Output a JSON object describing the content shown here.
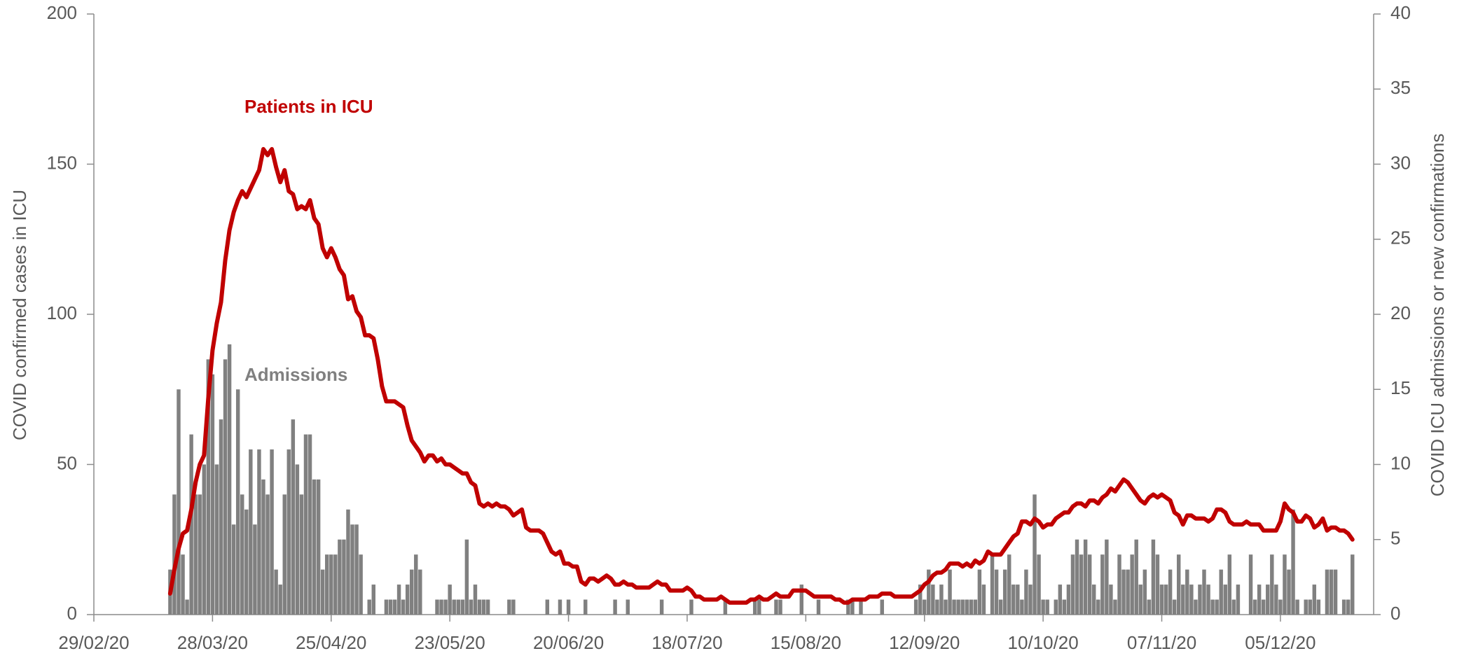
{
  "chart_data": {
    "type": "combo",
    "y_label": "COVID confirmed cases in ICU",
    "y2_label": "COVID ICU admissions or new confirmations",
    "xlim": [
      "29/02/20",
      "27/12/20"
    ],
    "xticks": [
      "29/02/20",
      "28/03/20",
      "25/04/20",
      "23/05/20",
      "20/06/20",
      "18/07/20",
      "15/08/20",
      "12/09/20",
      "10/10/20",
      "07/11/20",
      "05/12/20"
    ],
    "ylim": [
      0,
      200
    ],
    "yticks": [
      0,
      50,
      100,
      150,
      200
    ],
    "y2lim": [
      0,
      40
    ],
    "y2ticks": [
      0,
      5,
      10,
      15,
      20,
      25,
      30,
      35,
      40
    ],
    "grid": false,
    "x": [
      "18/03/20",
      "19/03/20",
      "20/03/20",
      "21/03/20",
      "22/03/20",
      "23/03/20",
      "24/03/20",
      "25/03/20",
      "26/03/20",
      "27/03/20",
      "28/03/20",
      "29/03/20",
      "30/03/20",
      "31/03/20",
      "01/04/20",
      "02/04/20",
      "03/04/20",
      "04/04/20",
      "05/04/20",
      "06/04/20",
      "07/04/20",
      "08/04/20",
      "09/04/20",
      "10/04/20",
      "11/04/20",
      "12/04/20",
      "13/04/20",
      "14/04/20",
      "15/04/20",
      "16/04/20",
      "17/04/20",
      "18/04/20",
      "19/04/20",
      "20/04/20",
      "21/04/20",
      "22/04/20",
      "23/04/20",
      "24/04/20",
      "25/04/20",
      "26/04/20",
      "27/04/20",
      "28/04/20",
      "29/04/20",
      "30/04/20",
      "01/05/20",
      "02/05/20",
      "03/05/20",
      "04/05/20",
      "05/05/20",
      "06/05/20",
      "07/05/20",
      "08/05/20",
      "09/05/20",
      "10/05/20",
      "11/05/20",
      "12/05/20",
      "13/05/20",
      "14/05/20",
      "15/05/20",
      "16/05/20",
      "17/05/20",
      "18/05/20",
      "19/05/20",
      "20/05/20",
      "21/05/20",
      "22/05/20",
      "23/05/20",
      "24/05/20",
      "25/05/20",
      "26/05/20",
      "27/05/20",
      "28/05/20",
      "29/05/20",
      "30/05/20",
      "31/05/20",
      "01/06/20",
      "02/06/20",
      "03/06/20",
      "04/06/20",
      "05/06/20",
      "06/06/20",
      "07/06/20",
      "08/06/20",
      "09/06/20",
      "10/06/20",
      "11/06/20",
      "12/06/20",
      "13/06/20",
      "14/06/20",
      "15/06/20",
      "16/06/20",
      "17/06/20",
      "18/06/20",
      "19/06/20",
      "20/06/20",
      "21/06/20",
      "22/06/20",
      "23/06/20",
      "24/06/20",
      "25/06/20",
      "26/06/20",
      "27/06/20",
      "28/06/20",
      "29/06/20",
      "30/06/20",
      "01/07/20",
      "02/07/20",
      "03/07/20",
      "04/07/20",
      "05/07/20",
      "06/07/20",
      "07/07/20",
      "08/07/20",
      "09/07/20",
      "10/07/20",
      "11/07/20",
      "12/07/20",
      "13/07/20",
      "14/07/20",
      "15/07/20",
      "16/07/20",
      "17/07/20",
      "18/07/20",
      "19/07/20",
      "20/07/20",
      "21/07/20",
      "22/07/20",
      "23/07/20",
      "24/07/20",
      "25/07/20",
      "26/07/20",
      "27/07/20",
      "28/07/20",
      "29/07/20",
      "30/07/20",
      "31/07/20",
      "01/08/20",
      "02/08/20",
      "03/08/20",
      "04/08/20",
      "05/08/20",
      "06/08/20",
      "07/08/20",
      "08/08/20",
      "09/08/20",
      "10/08/20",
      "11/08/20",
      "12/08/20",
      "13/08/20",
      "14/08/20",
      "15/08/20",
      "16/08/20",
      "17/08/20",
      "18/08/20",
      "19/08/20",
      "20/08/20",
      "21/08/20",
      "22/08/20",
      "23/08/20",
      "24/08/20",
      "25/08/20",
      "26/08/20",
      "27/08/20",
      "28/08/20",
      "29/08/20",
      "30/08/20",
      "31/08/20",
      "01/09/20",
      "02/09/20",
      "03/09/20",
      "04/09/20",
      "05/09/20",
      "06/09/20",
      "07/09/20",
      "08/09/20",
      "09/09/20",
      "10/09/20",
      "11/09/20",
      "12/09/20",
      "13/09/20",
      "14/09/20",
      "15/09/20",
      "16/09/20",
      "17/09/20",
      "18/09/20",
      "19/09/20",
      "20/09/20",
      "21/09/20",
      "22/09/20",
      "23/09/20",
      "24/09/20",
      "25/09/20",
      "26/09/20",
      "27/09/20",
      "28/09/20",
      "29/09/20",
      "30/09/20",
      "01/10/20",
      "02/10/20",
      "03/10/20",
      "04/10/20",
      "05/10/20",
      "06/10/20",
      "07/10/20",
      "08/10/20",
      "09/10/20",
      "10/10/20",
      "11/10/20",
      "12/10/20",
      "13/10/20",
      "14/10/20",
      "15/10/20",
      "16/10/20",
      "17/10/20",
      "18/10/20",
      "19/10/20",
      "20/10/20",
      "21/10/20",
      "22/10/20",
      "23/10/20",
      "24/10/20",
      "25/10/20",
      "26/10/20",
      "27/10/20",
      "28/10/20",
      "29/10/20",
      "30/10/20",
      "31/10/20",
      "01/11/20",
      "02/11/20",
      "03/11/20",
      "04/11/20",
      "05/11/20",
      "06/11/20",
      "07/11/20",
      "08/11/20",
      "09/11/20",
      "10/11/20",
      "11/11/20",
      "12/11/20",
      "13/11/20",
      "14/11/20",
      "15/11/20",
      "16/11/20",
      "17/11/20",
      "18/11/20",
      "19/11/20",
      "20/11/20",
      "21/11/20",
      "22/11/20",
      "23/11/20",
      "24/11/20",
      "25/11/20",
      "26/11/20",
      "27/11/20",
      "28/11/20",
      "29/11/20",
      "30/11/20",
      "01/12/20",
      "02/12/20",
      "03/12/20",
      "04/12/20",
      "05/12/20",
      "06/12/20",
      "07/12/20",
      "08/12/20",
      "09/12/20",
      "10/12/20",
      "11/12/20",
      "12/12/20",
      "13/12/20",
      "14/12/20",
      "15/12/20",
      "16/12/20",
      "17/12/20",
      "18/12/20",
      "19/12/20",
      "20/12/20",
      "21/12/20",
      "22/12/20"
    ],
    "series": [
      {
        "name": "Admissions",
        "type": "bar",
        "axis": "y2",
        "color": "#808080",
        "values": [
          3,
          8,
          15,
          4,
          1,
          12,
          8,
          8,
          10,
          17,
          16,
          10,
          13,
          17,
          18,
          6,
          15,
          8,
          7,
          11,
          6,
          11,
          9,
          8,
          11,
          3,
          2,
          8,
          11,
          13,
          10,
          8,
          12,
          12,
          9,
          9,
          3,
          4,
          4,
          4,
          5,
          5,
          7,
          6,
          6,
          4,
          0,
          1,
          2,
          0,
          0,
          1,
          1,
          1,
          2,
          1,
          2,
          3,
          4,
          3,
          0,
          0,
          0,
          1,
          1,
          1,
          2,
          1,
          1,
          1,
          5,
          1,
          2,
          1,
          1,
          1,
          0,
          0,
          0,
          0,
          1,
          1,
          0,
          0,
          0,
          0,
          0,
          0,
          0,
          1,
          0,
          0,
          1,
          0,
          1,
          0,
          0,
          0,
          1,
          0,
          0,
          0,
          0,
          0,
          0,
          1,
          0,
          0,
          1,
          0,
          0,
          0,
          0,
          0,
          0,
          0,
          1,
          0,
          0,
          0,
          0,
          0,
          0,
          1,
          0,
          0,
          0,
          0,
          0,
          0,
          0,
          1,
          0,
          0,
          0,
          0,
          0,
          0,
          1,
          1,
          0,
          0,
          0,
          1,
          1,
          0,
          0,
          0,
          0,
          2,
          0,
          0,
          0,
          1,
          0,
          0,
          0,
          0,
          0,
          0,
          1,
          1,
          0,
          1,
          0,
          0,
          0,
          0,
          1,
          0,
          0,
          0,
          0,
          0,
          0,
          0,
          1,
          2,
          1,
          3,
          2,
          1,
          2,
          1,
          3,
          1,
          1,
          1,
          1,
          1,
          1,
          3,
          2,
          0,
          4,
          3,
          1,
          3,
          4,
          2,
          2,
          1,
          3,
          2,
          8,
          4,
          1,
          1,
          0,
          1,
          2,
          1,
          2,
          4,
          5,
          4,
          5,
          4,
          2,
          1,
          4,
          5,
          2,
          1,
          4,
          3,
          3,
          4,
          5,
          2,
          3,
          1,
          5,
          4,
          2,
          2,
          3,
          1,
          4,
          2,
          3,
          2,
          1,
          2,
          3,
          2,
          1,
          1,
          3,
          2,
          4,
          1,
          2,
          0,
          0,
          4,
          1,
          2,
          1,
          2,
          4,
          2,
          1,
          4,
          3,
          7,
          1,
          0,
          1,
          1,
          2,
          1,
          0,
          3,
          3,
          3,
          0,
          1,
          1,
          4
        ]
      },
      {
        "name": "Patients in ICU",
        "type": "line",
        "axis": "y",
        "color": "#c00000",
        "values": [
          7,
          15,
          22,
          27,
          28,
          35,
          44,
          50,
          53,
          72,
          88,
          97,
          104,
          118,
          128,
          134,
          138,
          141,
          139,
          142,
          145,
          148,
          155,
          153,
          155,
          149,
          144,
          148,
          141,
          140,
          135,
          136,
          135,
          138,
          132,
          130,
          122,
          119,
          122,
          119,
          115,
          113,
          105,
          106,
          101,
          99,
          93,
          93,
          92,
          85,
          76,
          71,
          71,
          71,
          70,
          69,
          63,
          58,
          56,
          54,
          51,
          53,
          53,
          51,
          52,
          50,
          50,
          49,
          48,
          47,
          47,
          44,
          43,
          37,
          36,
          37,
          36,
          37,
          36,
          36,
          35,
          33,
          34,
          35,
          29,
          28,
          28,
          28,
          27,
          24,
          21,
          20,
          21,
          17,
          17,
          16,
          16,
          11,
          10,
          12,
          12,
          11,
          12,
          13,
          12,
          10,
          10,
          11,
          10,
          10,
          9,
          9,
          9,
          9,
          10,
          11,
          10,
          10,
          8,
          8,
          8,
          8,
          9,
          8,
          6,
          6,
          5,
          5,
          5,
          5,
          6,
          5,
          4,
          4,
          4,
          4,
          4,
          5,
          5,
          6,
          5,
          5,
          6,
          7,
          6,
          6,
          6,
          8,
          8,
          8,
          8,
          7,
          6,
          6,
          6,
          6,
          6,
          5,
          5,
          4,
          4,
          5,
          5,
          5,
          5,
          6,
          6,
          6,
          7,
          7,
          7,
          6,
          6,
          6,
          6,
          6,
          7,
          8,
          10,
          11,
          13,
          14,
          14,
          15,
          17,
          17,
          17,
          16,
          17,
          16,
          18,
          17,
          18,
          21,
          20,
          20,
          20,
          22,
          24,
          26,
          27,
          31,
          31,
          30,
          32,
          31,
          29,
          30,
          30,
          32,
          33,
          34,
          34,
          36,
          37,
          37,
          36,
          38,
          38,
          37,
          39,
          40,
          42,
          41,
          43,
          45,
          44,
          42,
          40,
          38,
          37,
          39,
          40,
          39,
          40,
          39,
          38,
          34,
          33,
          30,
          33,
          33,
          32,
          32,
          32,
          31,
          32,
          35,
          35,
          34,
          31,
          30,
          30,
          30,
          31,
          30,
          30,
          30,
          28,
          28,
          28,
          28,
          31,
          37,
          35,
          34,
          31,
          31,
          33,
          32,
          29,
          30,
          32,
          28,
          29,
          29,
          28,
          28,
          27,
          25
        ]
      }
    ]
  }
}
